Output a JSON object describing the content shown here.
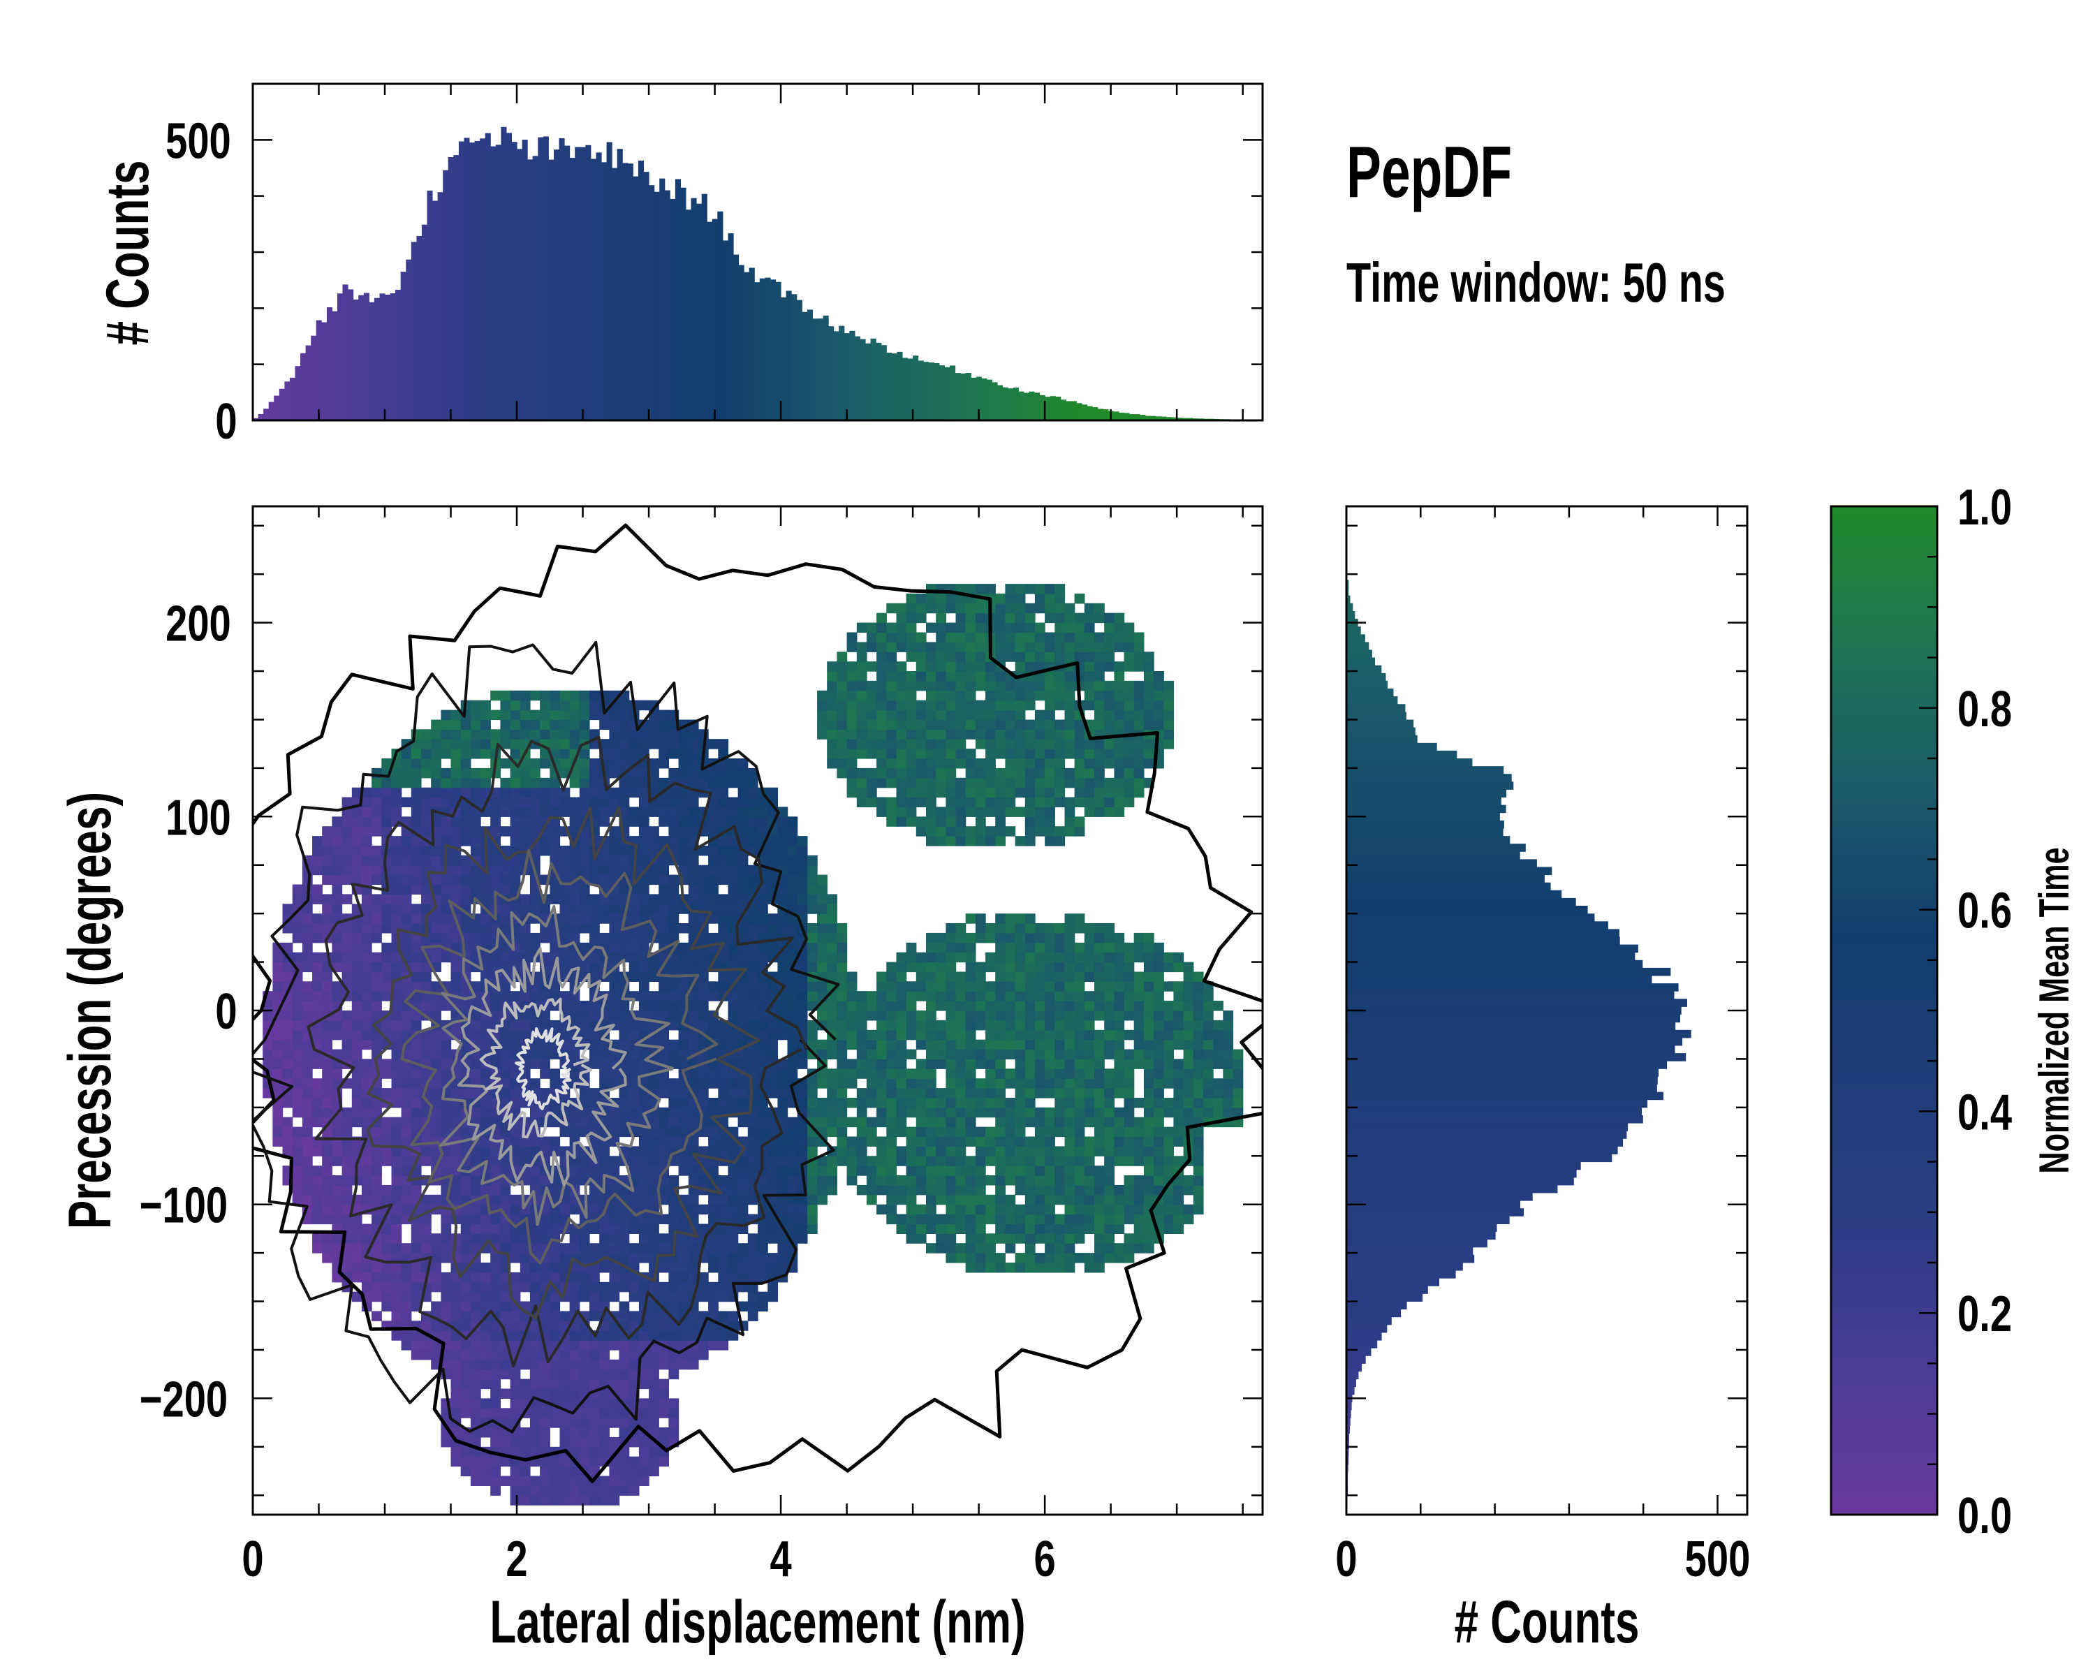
{
  "chart_data": [
    {
      "id": "joint-2d-histogram",
      "type": "heatmap",
      "xlabel": "Lateral displacement (nm)",
      "ylabel": "Precession (degrees)",
      "xlim": [
        0,
        7.65
      ],
      "ylim": [
        -260,
        260
      ],
      "xticks": [
        "0",
        "2",
        "4",
        "6"
      ],
      "xtick_values": [
        0,
        2,
        4,
        6
      ],
      "yticks": [
        "200",
        "100",
        "0",
        "−100",
        "−200"
      ],
      "ytick_values": [
        200,
        100,
        0,
        -100,
        -200
      ],
      "color_meaning": "Normalized Mean Time",
      "density_peak": [
        2.2,
        -30
      ],
      "contours": true
    },
    {
      "id": "x-marginal-histogram",
      "type": "bar",
      "ylabel": "# Counts",
      "xlim": [
        0,
        7.65
      ],
      "ylim": [
        0,
        600
      ],
      "yticks": [
        "500",
        "0"
      ],
      "ytick_values": [
        500,
        0
      ],
      "bin_width": 0.04,
      "curve_x": [
        0,
        0.1,
        0.3,
        0.5,
        0.7,
        0.9,
        1.1,
        1.2,
        1.3,
        1.4,
        1.6,
        1.8,
        2.0,
        2.2,
        2.4,
        2.6,
        2.8,
        3.0,
        3.2,
        3.4,
        3.5,
        3.6,
        3.7,
        3.8,
        4.0,
        4.2,
        4.4,
        4.6,
        4.8,
        5.0,
        5.2,
        5.4,
        5.6,
        5.8,
        6.0,
        6.2,
        6.4,
        6.6,
        6.8,
        7.0,
        7.2,
        7.4,
        7.5
      ],
      "curve_counts": [
        0,
        20,
        80,
        170,
        230,
        215,
        240,
        290,
        370,
        425,
        480,
        505,
        490,
        480,
        475,
        485,
        460,
        430,
        410,
        385,
        370,
        330,
        290,
        260,
        230,
        200,
        170,
        150,
        130,
        110,
        100,
        85,
        70,
        55,
        45,
        35,
        22,
        13,
        8,
        5,
        3,
        2,
        0
      ]
    },
    {
      "id": "y-marginal-histogram",
      "type": "bar",
      "orientation": "horizontal",
      "xlabel": "# Counts",
      "xlim": [
        0,
        540
      ],
      "ylim": [
        -260,
        260
      ],
      "xticks": [
        "0",
        "500"
      ],
      "xtick_values": [
        0,
        500
      ],
      "bin_width": 4,
      "curve_y": [
        -240,
        -220,
        -200,
        -190,
        -180,
        -170,
        -160,
        -150,
        -140,
        -120,
        -100,
        -80,
        -60,
        -40,
        -20,
        0,
        10,
        20,
        40,
        60,
        80,
        100,
        120,
        140,
        160,
        180,
        200,
        215
      ],
      "curve_counts": [
        2,
        4,
        8,
        14,
        25,
        45,
        60,
        90,
        130,
        190,
        240,
        330,
        390,
        420,
        440,
        470,
        440,
        420,
        370,
        300,
        240,
        200,
        230,
        100,
        70,
        40,
        15,
        3
      ]
    },
    {
      "id": "colorbar",
      "type": "colorbar",
      "label": "Normalized Mean Time",
      "range": [
        0,
        1
      ],
      "ticks": [
        "1.0",
        "0.8",
        "0.6",
        "0.4",
        "0.2",
        "0.0"
      ],
      "tick_values": [
        1.0,
        0.8,
        0.6,
        0.4,
        0.2,
        0.0
      ],
      "colormap_stops": [
        "#6b3aa0",
        "#4a3c96",
        "#2c3d86",
        "#1f3d78",
        "#123e6e",
        "#1b5a6a",
        "#1d7454",
        "#218a2a"
      ]
    }
  ],
  "annotations": {
    "title": "PepDF",
    "subtitle": "Time window: 50 ns"
  }
}
